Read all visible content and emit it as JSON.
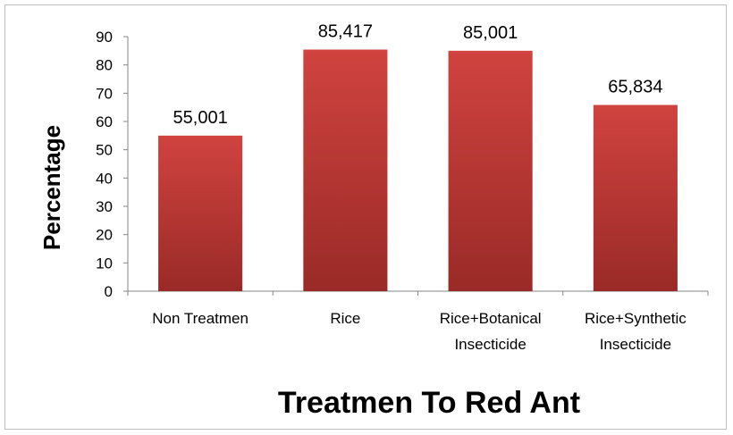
{
  "chart_data": {
    "type": "bar",
    "title": "",
    "xlabel": "Treatmen To Red Ant",
    "ylabel": "Percentage",
    "categories": [
      [
        "Non Treatmen"
      ],
      [
        "Rice"
      ],
      [
        "Rice+Botanical",
        "Insecticide"
      ],
      [
        "Rice+Synthetic",
        "Insecticide"
      ]
    ],
    "values": [
      55.001,
      85.417,
      85.001,
      65.834
    ],
    "data_labels": [
      "55,001",
      "85,417",
      "85,001",
      "65,834"
    ],
    "ylim": [
      0,
      90
    ],
    "yticks": [
      0,
      10,
      20,
      30,
      40,
      50,
      60,
      70,
      80,
      90
    ],
    "grid": false,
    "legend": "none",
    "bar_color_top": "#d0433f",
    "bar_color_bottom": "#9a2a27"
  }
}
